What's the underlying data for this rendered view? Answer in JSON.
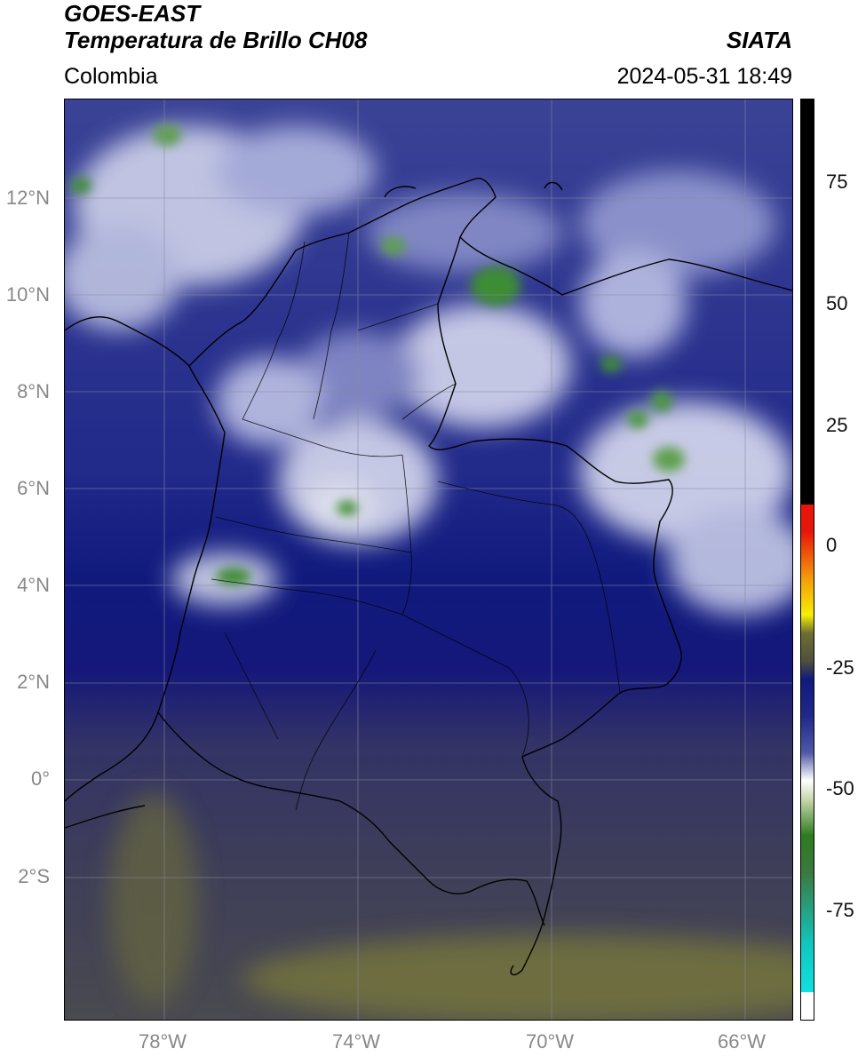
{
  "header": {
    "satellite": "GOES-EAST",
    "product": "Temperatura de Brillo CH08",
    "brand": "SIATA",
    "region": "Colombia",
    "datetime": "2024-05-31 18:49"
  },
  "map": {
    "lon_range": [
      -80,
      -64.9
    ],
    "lat_range": [
      -4.9,
      14.1
    ],
    "lat_ticks": [
      "12°N",
      "10°N",
      "8°N",
      "6°N",
      "4°N",
      "2°N",
      "0°",
      "2°S"
    ],
    "lon_ticks": [
      "78°W",
      "74°W",
      "70°W",
      "66°W"
    ]
  },
  "colorbar": {
    "ticks": [
      "75",
      "50",
      "25",
      "0",
      "-25",
      "-50",
      "-75"
    ],
    "colors": {
      "black": "#000000",
      "red": "#e8160a",
      "orange": "#f39a0a",
      "yellow": "#f6ee05",
      "olive": "#6e6e33",
      "navy": "#101a7d",
      "white": "#ffffff",
      "green": "#2e7b1e",
      "teal": "#10c8c0"
    }
  }
}
